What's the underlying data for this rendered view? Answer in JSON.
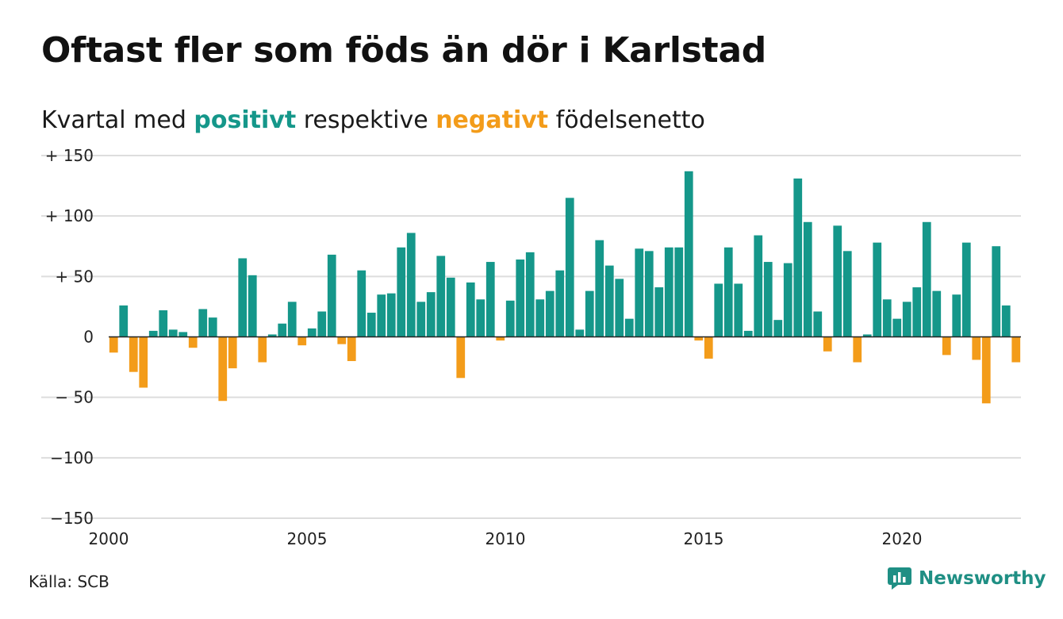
{
  "header": {
    "title": "Oftast fler som föds än dör i Karlstad",
    "subtitle_pre": "Kvartal med ",
    "subtitle_positive": "positivt",
    "subtitle_mid": " respektive ",
    "subtitle_negative": "negativt",
    "subtitle_post": " födelsenetto"
  },
  "footer": {
    "source": "Källa: SCB",
    "brand": "Newsworthy",
    "brand_icon": "newsworthy-logo-icon"
  },
  "colors": {
    "positive": "#15978a",
    "negative": "#f39c1a",
    "grid": "#dddddd",
    "axis": "#222222"
  },
  "chart_data": {
    "type": "bar",
    "title": "Oftast fler som föds än dör i Karlstad",
    "subtitle": "Kvartal med positivt respektive negativt födelsenetto",
    "xlabel": "",
    "ylabel": "",
    "ylim": [
      -150,
      150
    ],
    "yticks": [
      150,
      100,
      50,
      0,
      -50,
      -100,
      -150
    ],
    "ytick_labels": [
      "+ 150",
      "+ 100",
      "+  50",
      "0",
      "− 50",
      "−100",
      "−150"
    ],
    "xticks": [
      2000,
      2005,
      2010,
      2015,
      2020
    ],
    "x_start_year": 2000,
    "x_start_quarter": 1,
    "grid": true,
    "legend": "none",
    "values": [
      -13,
      26,
      -29,
      -42,
      5,
      22,
      6,
      4,
      -9,
      23,
      16,
      -53,
      -26,
      65,
      51,
      -21,
      2,
      11,
      29,
      -7,
      7,
      21,
      68,
      -6,
      -20,
      55,
      20,
      35,
      36,
      74,
      86,
      29,
      37,
      67,
      49,
      -34,
      45,
      31,
      62,
      -3,
      30,
      64,
      70,
      31,
      38,
      55,
      115,
      6,
      38,
      80,
      59,
      48,
      15,
      73,
      71,
      41,
      74,
      74,
      137,
      -3,
      -18,
      44,
      74,
      44,
      5,
      84,
      62,
      14,
      61,
      131,
      95,
      21,
      -12,
      92,
      71,
      -21,
      2,
      78,
      31,
      15,
      29,
      41,
      95,
      38,
      -15,
      35,
      78,
      -19,
      -55,
      75,
      26,
      -21
    ]
  }
}
